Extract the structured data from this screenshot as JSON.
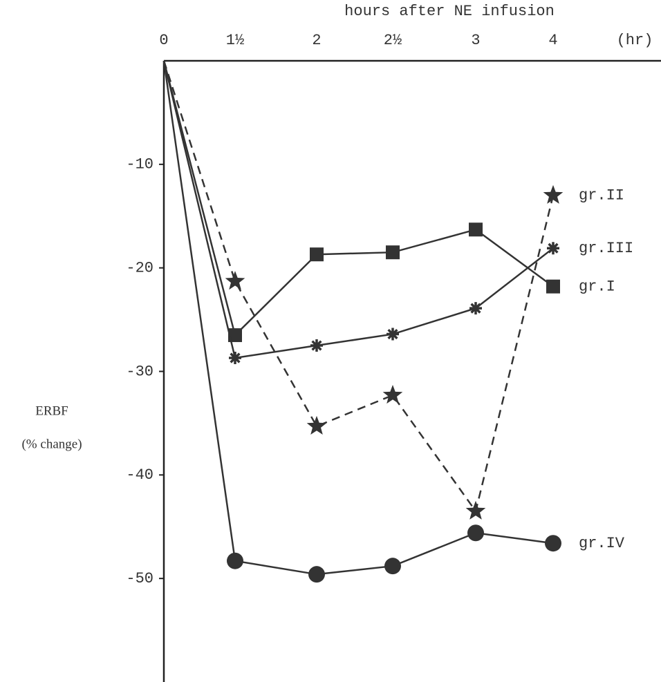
{
  "chart_data": {
    "type": "line",
    "title": "hours after NE infusion",
    "x_unit": "(hr)",
    "ylabel": "ERBF",
    "ylabel_unit": "(% change)",
    "categories": [
      "0",
      "1½",
      "2",
      "2½",
      "3",
      "4"
    ],
    "ylim": [
      0,
      -60
    ],
    "yticks": [
      -10,
      -20,
      -30,
      -40,
      -50
    ],
    "series": [
      {
        "name": "gr.I",
        "color": "#333333",
        "marker": "square",
        "dashed": false,
        "values": [
          0,
          -26.5,
          -18.7,
          -18.5,
          -16.3,
          -21.8
        ]
      },
      {
        "name": "gr.II",
        "color": "#333333",
        "marker": "star",
        "dashed": true,
        "values": [
          0,
          -21.3,
          -35.3,
          -32.3,
          -43.5,
          -13.0
        ]
      },
      {
        "name": "gr.III",
        "color": "#333333",
        "marker": "asterisk",
        "dashed": false,
        "values": [
          0,
          -28.7,
          -27.5,
          -26.4,
          -23.9,
          -18.1
        ]
      },
      {
        "name": "gr.IV",
        "color": "#333333",
        "marker": "circle",
        "dashed": false,
        "values": [
          0,
          -48.3,
          -49.6,
          -48.8,
          -45.6,
          -46.6
        ]
      }
    ]
  }
}
